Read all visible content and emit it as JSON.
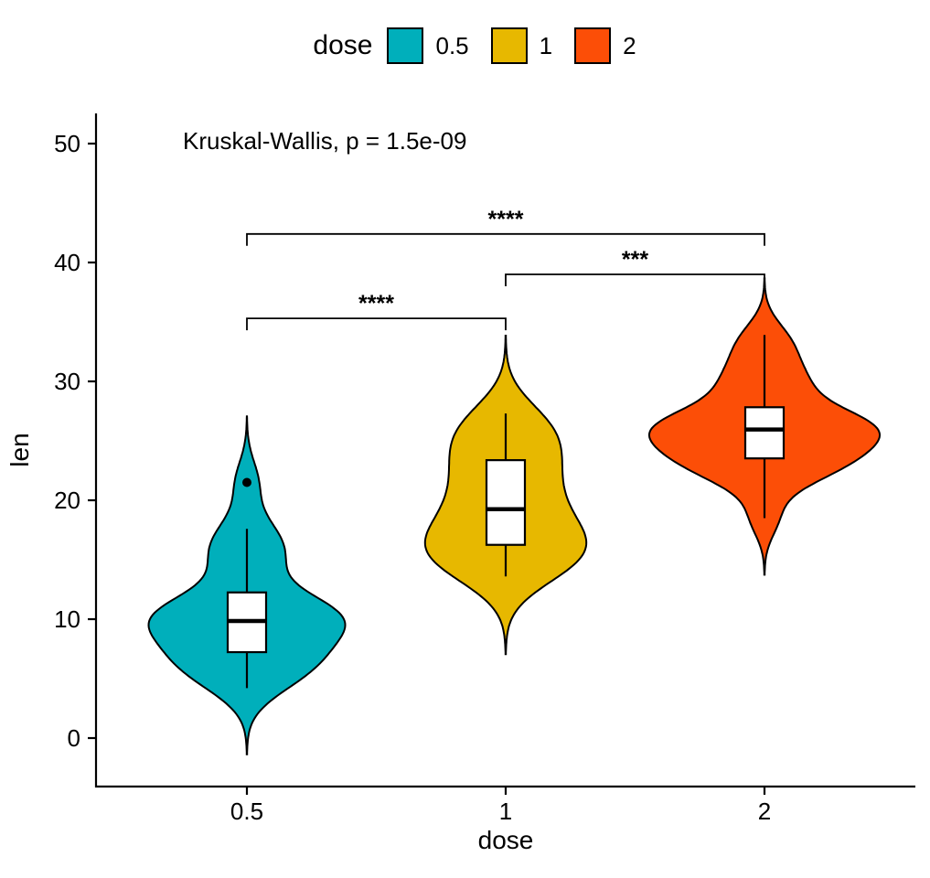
{
  "chart_data": {
    "type": "violin",
    "title": "",
    "xlabel": "dose",
    "ylabel": "len",
    "ylim": [
      -3,
      52
    ],
    "y_ticks": [
      0,
      10,
      20,
      30,
      40,
      50
    ],
    "x_categories": [
      "0.5",
      "1",
      "2"
    ],
    "grid": "off",
    "legend_position": "top",
    "annotation": "Kruskal-Wallis, p = 1.5e-09",
    "legend": {
      "title": "dose",
      "entries": [
        {
          "label": "0.5",
          "color": "#00AFBB"
        },
        {
          "label": "1",
          "color": "#E7B800"
        },
        {
          "label": "2",
          "color": "#FC4E07"
        }
      ]
    },
    "groups": [
      {
        "label": "0.5",
        "color": "#00AFBB",
        "points": [
          4.2,
          11.5,
          7.3,
          5.8,
          6.4,
          10.0,
          11.2,
          11.2,
          5.2,
          7.0,
          15.2,
          21.5,
          17.6,
          9.7,
          14.5,
          10.0,
          8.2,
          9.4,
          16.5,
          9.7
        ],
        "box": {
          "median": 9.85,
          "q1": 7.225,
          "q3": 12.25,
          "whisker_low": 4.2,
          "whisker_high": 17.6,
          "outliers": [
            21.5
          ]
        }
      },
      {
        "label": "1",
        "color": "#E7B800",
        "points": [
          16.5,
          16.5,
          15.2,
          17.3,
          22.5,
          17.3,
          13.6,
          14.5,
          18.8,
          15.5,
          19.7,
          23.3,
          23.6,
          26.4,
          20.0,
          25.2,
          25.8,
          21.2,
          14.5,
          27.3
        ],
        "box": {
          "median": 19.25,
          "q1": 16.25,
          "q3": 23.375,
          "whisker_low": 13.6,
          "whisker_high": 27.3,
          "outliers": []
        }
      },
      {
        "label": "2",
        "color": "#FC4E07",
        "points": [
          23.6,
          18.5,
          33.9,
          25.5,
          26.4,
          32.5,
          26.7,
          21.5,
          23.3,
          29.5,
          25.5,
          26.4,
          22.4,
          24.5,
          24.8,
          30.9,
          26.4,
          27.3,
          29.4,
          23.0
        ],
        "box": {
          "median": 25.95,
          "q1": 23.525,
          "q3": 27.825,
          "whisker_low": 18.5,
          "whisker_high": 33.9,
          "outliers": []
        }
      }
    ],
    "comparisons": [
      {
        "group1": "0.5",
        "group2": "1",
        "label": "****",
        "y": 35.3
      },
      {
        "group1": "1",
        "group2": "2",
        "label": "***",
        "y": 39.0
      },
      {
        "group1": "0.5",
        "group2": "2",
        "label": "****",
        "y": 42.4
      }
    ]
  }
}
